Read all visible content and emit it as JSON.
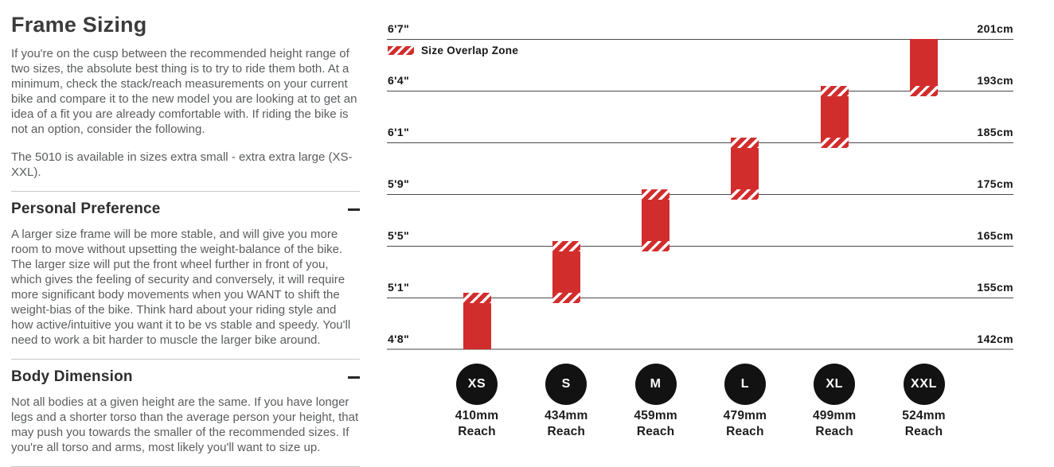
{
  "left_panel": {
    "title": "Frame Sizing",
    "intro": "If you're on the cusp between the recommended height range of two sizes, the absolute best thing is to try to ride them both. At a minimum, check the stack/reach measurements on your current bike and compare it to the new model you are looking at to get an idea of a fit you are already comfortable with. If riding the bike is not an option, consider the following.",
    "availability": "The 5010 is available in sizes extra small - extra extra large (XS-XXL).",
    "sections": [
      {
        "heading": "Personal Preference",
        "toggle_icon": "minus-icon",
        "body": "A larger size frame will be more stable, and will give you more room to move without upsetting the weight-balance of the bike. The larger size will put the front wheel further in front of you, which gives the feeling of security and conversely, it will require more significant body movements when you WANT to shift the weight-bias of the bike. Think hard about your riding style and how active/intuitive you want it to be vs stable and speedy. You'll need to work a bit harder to muscle the larger bike around."
      },
      {
        "heading": "Body Dimension",
        "toggle_icon": "minus-icon",
        "body": "Not all bodies at a given height are the same. If you have longer legs and a shorter torso than the average person your height, that may push you towards the smaller of the recommended sizes. If you're all torso and arms, most likely you'll want to size up."
      }
    ]
  },
  "chart_data": {
    "type": "bar",
    "subtype": "vertical-range-bars-by-rider-height",
    "legend": {
      "label": "Size Overlap Zone",
      "swatch": "red-diagonal-hatch"
    },
    "height_lines": [
      {
        "ft": "6'7\"",
        "cm": "201cm"
      },
      {
        "ft": "6'4\"",
        "cm": "193cm"
      },
      {
        "ft": "6'1\"",
        "cm": "185cm"
      },
      {
        "ft": "5'9\"",
        "cm": "175cm"
      },
      {
        "ft": "5'5\"",
        "cm": "165cm"
      },
      {
        "ft": "5'1\"",
        "cm": "155cm"
      },
      {
        "ft": "4'8\"",
        "cm": "142cm"
      }
    ],
    "reach_caption": "Reach",
    "bars": [
      {
        "size": "XS",
        "reach": "410mm",
        "height_range_ft": "4'8\"-5'1\"",
        "height_range_cm": "142-155cm",
        "top_line": 5,
        "bottom_line": 6,
        "overlap_top": true,
        "overlap_bottom": false
      },
      {
        "size": "S",
        "reach": "434mm",
        "height_range_ft": "5'1\"-5'5\"",
        "height_range_cm": "155-165cm",
        "top_line": 4,
        "bottom_line": 5,
        "overlap_top": true,
        "overlap_bottom": true
      },
      {
        "size": "M",
        "reach": "459mm",
        "height_range_ft": "5'5\"-5'9\"",
        "height_range_cm": "165-175cm",
        "top_line": 3,
        "bottom_line": 4,
        "overlap_top": true,
        "overlap_bottom": true
      },
      {
        "size": "L",
        "reach": "479mm",
        "height_range_ft": "5'9\"-6'1\"",
        "height_range_cm": "175-185cm",
        "top_line": 2,
        "bottom_line": 3,
        "overlap_top": true,
        "overlap_bottom": true
      },
      {
        "size": "XL",
        "reach": "499mm",
        "height_range_ft": "6'1\"-6'4\"",
        "height_range_cm": "185-193cm",
        "top_line": 1,
        "bottom_line": 2,
        "overlap_top": true,
        "overlap_bottom": true
      },
      {
        "size": "XXL",
        "reach": "524mm",
        "height_range_ft": "6'4\"-6'7\"",
        "height_range_cm": "193-201cm",
        "top_line": 0,
        "bottom_line": 1,
        "overlap_top": false,
        "overlap_bottom": true
      }
    ],
    "colors": {
      "bar": "#d22d2d",
      "overlap_hatch": "#d22d2d on #ffffff",
      "circle": "#121212",
      "gridline": "#4a4a4a",
      "baseline": "#a2a2a2"
    }
  }
}
